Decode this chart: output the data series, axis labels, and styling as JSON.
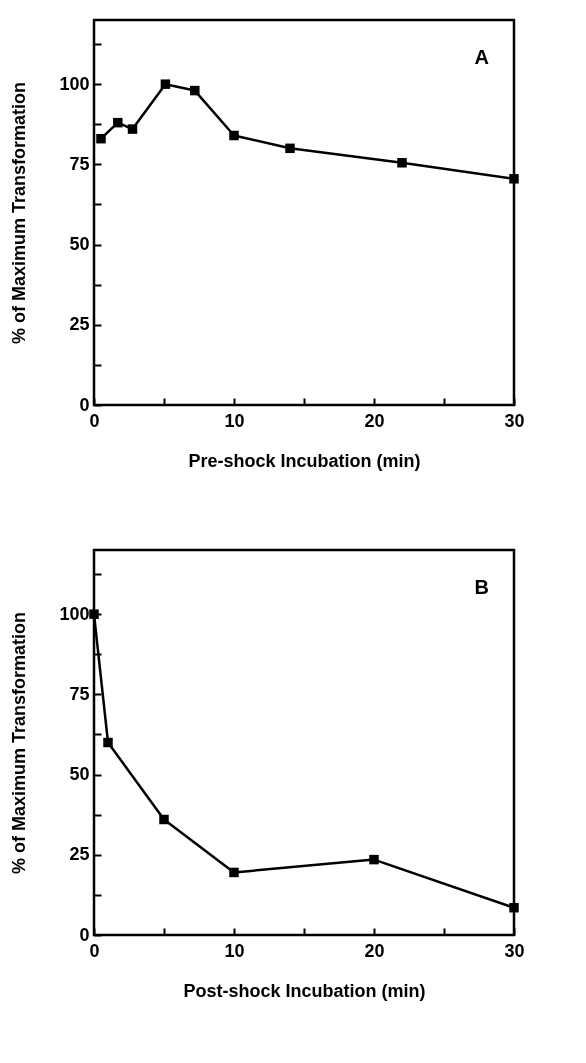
{
  "chart_data": [
    {
      "type": "line",
      "xlabel": "Pre-shock Incubation (min)",
      "ylabel": "% of Maximum Transformation",
      "annotations": [
        "A"
      ],
      "x": [
        0.5,
        1.7,
        2.75,
        5.1,
        7.2,
        10,
        14,
        22,
        30
      ],
      "series": [
        {
          "color": "#000000",
          "values": [
            83,
            88,
            86,
            100,
            98,
            84,
            80,
            75.5,
            70.5
          ]
        }
      ],
      "xlim": [
        0,
        30
      ],
      "ylim": [
        0,
        120
      ],
      "xticks": [
        0,
        {
          "value": 5,
          "label": null
        },
        10,
        {
          "value": 15,
          "label": null
        },
        20,
        {
          "value": 25,
          "label": null
        },
        30
      ],
      "yticks": [
        0,
        {
          "value": 12.5,
          "label": null
        },
        25,
        {
          "value": 37.5,
          "label": null
        },
        50,
        {
          "value": 62.5,
          "label": null
        },
        75,
        {
          "value": 87.5,
          "label": null
        },
        100,
        {
          "value": 112.5,
          "label": null
        }
      ],
      "grid": false,
      "marker": "square",
      "line_style": "solid"
    },
    {
      "type": "line",
      "xlabel": "Post-shock Incubation (min)",
      "ylabel": "% of Maximum Transformation",
      "annotations": [
        "B"
      ],
      "x": [
        0,
        1,
        5,
        10,
        20,
        30
      ],
      "series": [
        {
          "color": "#000000",
          "values": [
            100,
            60,
            36,
            19.5,
            23.5,
            8.5
          ]
        }
      ],
      "xlim": [
        0,
        30
      ],
      "ylim": [
        0,
        120
      ],
      "xticks": [
        0,
        {
          "value": 5,
          "label": null
        },
        10,
        {
          "value": 15,
          "label": null
        },
        20,
        {
          "value": 25,
          "label": null
        },
        30
      ],
      "yticks": [
        0,
        {
          "value": 12.5,
          "label": null
        },
        25,
        {
          "value": 37.5,
          "label": null
        },
        50,
        {
          "value": 62.5,
          "label": null
        },
        75,
        {
          "value": 87.5,
          "label": null
        },
        100,
        {
          "value": 112.5,
          "label": null
        }
      ],
      "grid": false,
      "marker": "square",
      "line_style": "solid"
    }
  ]
}
